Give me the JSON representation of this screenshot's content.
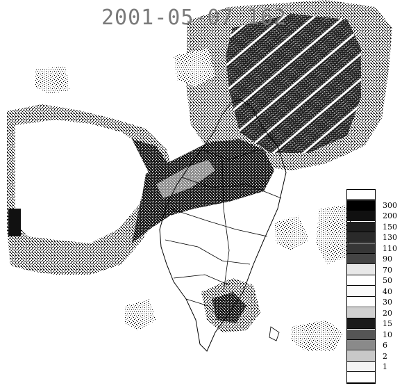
{
  "title": "2001-05-07 162",
  "legend": {
    "levels": [
      {
        "label": "",
        "color": "#ffffff"
      },
      {
        "label": "300",
        "color": "#000000"
      },
      {
        "label": "200",
        "color": "#101010"
      },
      {
        "label": "150",
        "color": "#1e1e1e"
      },
      {
        "label": "130",
        "color": "#2a2a2a"
      },
      {
        "label": "110",
        "color": "#363636"
      },
      {
        "label": "90",
        "color": "#444444"
      },
      {
        "label": "70",
        "color": "#e8e8e8"
      },
      {
        "label": "50",
        "color": "#ffffff"
      },
      {
        "label": "40",
        "color": "#fafafa"
      },
      {
        "label": "30",
        "color": "#ffffff"
      },
      {
        "label": "20",
        "color": "#d0d0d0"
      },
      {
        "label": "15",
        "color": "#1a1a1a"
      },
      {
        "label": "10",
        "color": "#555555"
      },
      {
        "label": "6",
        "color": "#8a8a8a"
      },
      {
        "label": "2",
        "color": "#c8c8c8"
      },
      {
        "label": "1",
        "color": "#f4f4f4"
      },
      {
        "label": "",
        "color": "#ffffff"
      }
    ]
  }
}
